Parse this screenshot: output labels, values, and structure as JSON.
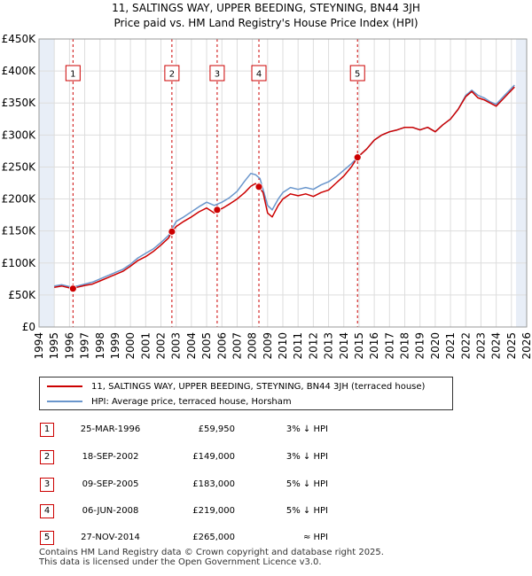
{
  "title_line1": "11, SALTINGS WAY, UPPER BEEDING, STEYNING, BN44 3JH",
  "title_line2": "Price paid vs. HM Land Registry's House Price Index (HPI)",
  "colors": {
    "red": "#cc0000",
    "blue": "#6a96cc",
    "grid": "#dddddd",
    "band": "#e8eef7"
  },
  "chart_data": {
    "type": "line",
    "x_range": [
      1994,
      2026
    ],
    "ylim": [
      0,
      450000
    ],
    "x_ticks": [
      "1994",
      "1995",
      "1996",
      "1997",
      "1998",
      "1999",
      "2000",
      "2001",
      "2002",
      "2003",
      "2004",
      "2005",
      "2006",
      "2007",
      "2008",
      "2009",
      "2010",
      "2011",
      "2012",
      "2013",
      "2014",
      "2015",
      "2016",
      "2017",
      "2018",
      "2019",
      "2020",
      "2021",
      "2022",
      "2023",
      "2024",
      "2025",
      "2026"
    ],
    "y_ticks": [
      {
        "value": 0,
        "label": "£0"
      },
      {
        "value": 50000,
        "label": "£50K"
      },
      {
        "value": 100000,
        "label": "£100K"
      },
      {
        "value": 150000,
        "label": "£150K"
      },
      {
        "value": 200000,
        "label": "£200K"
      },
      {
        "value": 250000,
        "label": "£250K"
      },
      {
        "value": 300000,
        "label": "£300K"
      },
      {
        "value": 350000,
        "label": "£350K"
      },
      {
        "value": 400000,
        "label": "£400K"
      },
      {
        "value": 450000,
        "label": "£450K"
      }
    ],
    "shaded_ranges": [
      [
        1994.0,
        1995.0
      ],
      [
        2025.3,
        2026.0
      ]
    ],
    "series": [
      {
        "name": "11, SALTINGS WAY, UPPER BEEDING, STEYNING, BN44 3JH (terraced house)",
        "color": "#cc0000",
        "points": [
          [
            1995.0,
            62000
          ],
          [
            1995.5,
            64000
          ],
          [
            1996.0,
            61000
          ],
          [
            1996.23,
            59950
          ],
          [
            1996.5,
            62000
          ],
          [
            1997.0,
            65000
          ],
          [
            1997.5,
            67000
          ],
          [
            1998.0,
            72000
          ],
          [
            1998.5,
            77000
          ],
          [
            1999.0,
            82000
          ],
          [
            1999.5,
            87000
          ],
          [
            2000.0,
            95000
          ],
          [
            2000.5,
            104000
          ],
          [
            2001.0,
            110000
          ],
          [
            2001.5,
            118000
          ],
          [
            2002.0,
            128000
          ],
          [
            2002.5,
            139000
          ],
          [
            2002.72,
            149000
          ],
          [
            2003.0,
            157000
          ],
          [
            2003.5,
            165000
          ],
          [
            2004.0,
            172000
          ],
          [
            2004.5,
            180000
          ],
          [
            2005.0,
            186000
          ],
          [
            2005.5,
            178000
          ],
          [
            2005.69,
            183000
          ],
          [
            2006.0,
            185000
          ],
          [
            2006.5,
            192000
          ],
          [
            2007.0,
            200000
          ],
          [
            2007.5,
            210000
          ],
          [
            2007.9,
            220000
          ],
          [
            2008.2,
            224000
          ],
          [
            2008.43,
            219000
          ],
          [
            2008.7,
            210000
          ],
          [
            2009.0,
            178000
          ],
          [
            2009.3,
            172000
          ],
          [
            2009.7,
            190000
          ],
          [
            2010.0,
            200000
          ],
          [
            2010.5,
            208000
          ],
          [
            2011.0,
            205000
          ],
          [
            2011.5,
            208000
          ],
          [
            2012.0,
            204000
          ],
          [
            2012.5,
            210000
          ],
          [
            2013.0,
            214000
          ],
          [
            2013.5,
            225000
          ],
          [
            2014.0,
            236000
          ],
          [
            2014.5,
            250000
          ],
          [
            2014.9,
            265000
          ],
          [
            2015.5,
            278000
          ],
          [
            2016.0,
            292000
          ],
          [
            2016.5,
            300000
          ],
          [
            2017.0,
            305000
          ],
          [
            2017.5,
            308000
          ],
          [
            2018.0,
            312000
          ],
          [
            2018.5,
            312000
          ],
          [
            2019.0,
            308000
          ],
          [
            2019.5,
            312000
          ],
          [
            2020.0,
            305000
          ],
          [
            2020.5,
            316000
          ],
          [
            2021.0,
            325000
          ],
          [
            2021.5,
            340000
          ],
          [
            2022.0,
            360000
          ],
          [
            2022.4,
            368000
          ],
          [
            2022.8,
            358000
          ],
          [
            2023.2,
            355000
          ],
          [
            2023.6,
            350000
          ],
          [
            2024.0,
            345000
          ],
          [
            2024.4,
            355000
          ],
          [
            2024.8,
            365000
          ],
          [
            2025.2,
            375000
          ]
        ]
      },
      {
        "name": "HPI: Average price, terraced house, Horsham",
        "color": "#6a96cc",
        "points": [
          [
            1995.0,
            64000
          ],
          [
            1995.5,
            66000
          ],
          [
            1996.0,
            63000
          ],
          [
            1996.5,
            64000
          ],
          [
            1997.0,
            67000
          ],
          [
            1997.5,
            70000
          ],
          [
            1998.0,
            75000
          ],
          [
            1998.5,
            80000
          ],
          [
            1999.0,
            85000
          ],
          [
            1999.5,
            90000
          ],
          [
            2000.0,
            98000
          ],
          [
            2000.5,
            108000
          ],
          [
            2001.0,
            115000
          ],
          [
            2001.5,
            122000
          ],
          [
            2002.0,
            132000
          ],
          [
            2002.5,
            143000
          ],
          [
            2003.0,
            165000
          ],
          [
            2003.5,
            172000
          ],
          [
            2004.0,
            180000
          ],
          [
            2004.5,
            188000
          ],
          [
            2005.0,
            195000
          ],
          [
            2005.5,
            190000
          ],
          [
            2006.0,
            195000
          ],
          [
            2006.5,
            202000
          ],
          [
            2007.0,
            212000
          ],
          [
            2007.5,
            228000
          ],
          [
            2007.9,
            240000
          ],
          [
            2008.2,
            238000
          ],
          [
            2008.5,
            232000
          ],
          [
            2009.0,
            190000
          ],
          [
            2009.3,
            183000
          ],
          [
            2009.7,
            200000
          ],
          [
            2010.0,
            210000
          ],
          [
            2010.5,
            218000
          ],
          [
            2011.0,
            215000
          ],
          [
            2011.5,
            218000
          ],
          [
            2012.0,
            215000
          ],
          [
            2012.5,
            222000
          ],
          [
            2013.0,
            227000
          ],
          [
            2013.5,
            235000
          ],
          [
            2014.0,
            245000
          ],
          [
            2014.5,
            255000
          ],
          [
            2014.9,
            265000
          ],
          [
            2015.5,
            278000
          ],
          [
            2016.0,
            292000
          ],
          [
            2016.5,
            300000
          ],
          [
            2017.0,
            305000
          ],
          [
            2017.5,
            308000
          ],
          [
            2018.0,
            312000
          ],
          [
            2018.5,
            312000
          ],
          [
            2019.0,
            308000
          ],
          [
            2019.5,
            312000
          ],
          [
            2020.0,
            305000
          ],
          [
            2020.5,
            316000
          ],
          [
            2021.0,
            325000
          ],
          [
            2021.5,
            340000
          ],
          [
            2022.0,
            362000
          ],
          [
            2022.4,
            370000
          ],
          [
            2022.8,
            362000
          ],
          [
            2023.2,
            358000
          ],
          [
            2023.6,
            352000
          ],
          [
            2024.0,
            348000
          ],
          [
            2024.4,
            358000
          ],
          [
            2024.8,
            368000
          ],
          [
            2025.2,
            378000
          ]
        ]
      }
    ],
    "markers": [
      {
        "label": "1",
        "x": 1996.23,
        "y": 59950
      },
      {
        "label": "2",
        "x": 2002.72,
        "y": 149000
      },
      {
        "label": "3",
        "x": 2005.69,
        "y": 183000
      },
      {
        "label": "4",
        "x": 2008.43,
        "y": 219000
      },
      {
        "label": "5",
        "x": 2014.9,
        "y": 265000
      }
    ]
  },
  "legend": {
    "red_label": "11, SALTINGS WAY, UPPER BEEDING, STEYNING, BN44 3JH (terraced house)",
    "blue_label": "HPI: Average price, terraced house, Horsham"
  },
  "transactions": [
    {
      "num": "1",
      "date": "25-MAR-1996",
      "price": "£59,950",
      "hpi": "3% ↓ HPI"
    },
    {
      "num": "2",
      "date": "18-SEP-2002",
      "price": "£149,000",
      "hpi": "3% ↓ HPI"
    },
    {
      "num": "3",
      "date": "09-SEP-2005",
      "price": "£183,000",
      "hpi": "5% ↓ HPI"
    },
    {
      "num": "4",
      "date": "06-JUN-2008",
      "price": "£219,000",
      "hpi": "5% ↓ HPI"
    },
    {
      "num": "5",
      "date": "27-NOV-2014",
      "price": "£265,000",
      "hpi": "≈ HPI"
    }
  ],
  "footer_line1": "Contains HM Land Registry data © Crown copyright and database right 2025.",
  "footer_line2": "This data is licensed under the Open Government Licence v3.0."
}
